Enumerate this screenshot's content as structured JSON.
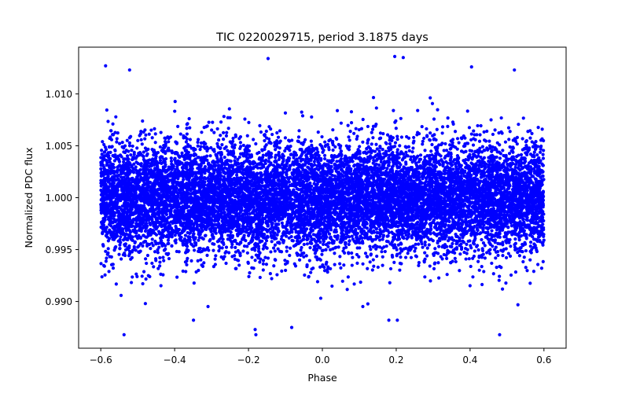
{
  "chart_data": {
    "type": "scatter",
    "title": "TIC 0220029715, period 3.1875 days",
    "xlabel": "Phase",
    "ylabel": "Normalized PDC flux",
    "xlim": [
      -0.66,
      0.66
    ],
    "ylim": [
      0.9855,
      1.0145
    ],
    "xticks": [
      -0.6,
      -0.4,
      -0.2,
      0.0,
      0.2,
      0.4,
      0.6
    ],
    "xtick_labels": [
      "−0.6",
      "−0.4",
      "−0.2",
      "0.0",
      "0.2",
      "0.4",
      "0.6"
    ],
    "yticks": [
      0.99,
      0.995,
      1.0,
      1.005,
      1.01
    ],
    "ytick_labels": [
      "0.990",
      "0.995",
      "1.000",
      "1.005",
      "1.010"
    ],
    "grid": false,
    "series": [
      {
        "name": "PDC flux",
        "color": "#0000ff",
        "marker": "circle",
        "x_range": [
          -0.6,
          0.6
        ],
        "n_points": 12000,
        "baseline": 1.0,
        "scatter_sigma": 0.0027,
        "transit_dips": [
          {
            "phase_center": -0.175,
            "phase_width": 0.012,
            "depth": 0.0012
          },
          {
            "phase_center": 0.0,
            "phase_width": 0.012,
            "depth": 0.0006
          }
        ],
        "notable_points": [
          {
            "x": -0.587,
            "y": 1.0127
          },
          {
            "x": -0.147,
            "y": 1.0134
          },
          {
            "x": 0.196,
            "y": 1.0136
          },
          {
            "x": 0.219,
            "y": 1.0135
          },
          {
            "x": 0.404,
            "y": 1.0126
          },
          {
            "x": -0.522,
            "y": 1.0123
          },
          {
            "x": 0.52,
            "y": 1.0123
          },
          {
            "x": -0.537,
            "y": 0.9868
          },
          {
            "x": -0.18,
            "y": 0.9868
          },
          {
            "x": 0.48,
            "y": 0.9868
          },
          {
            "x": -0.083,
            "y": 0.9875
          },
          {
            "x": -0.182,
            "y": 0.9873
          },
          {
            "x": 0.18,
            "y": 0.9882
          },
          {
            "x": 0.203,
            "y": 0.9882
          },
          {
            "x": -0.349,
            "y": 0.9882
          }
        ]
      }
    ]
  }
}
